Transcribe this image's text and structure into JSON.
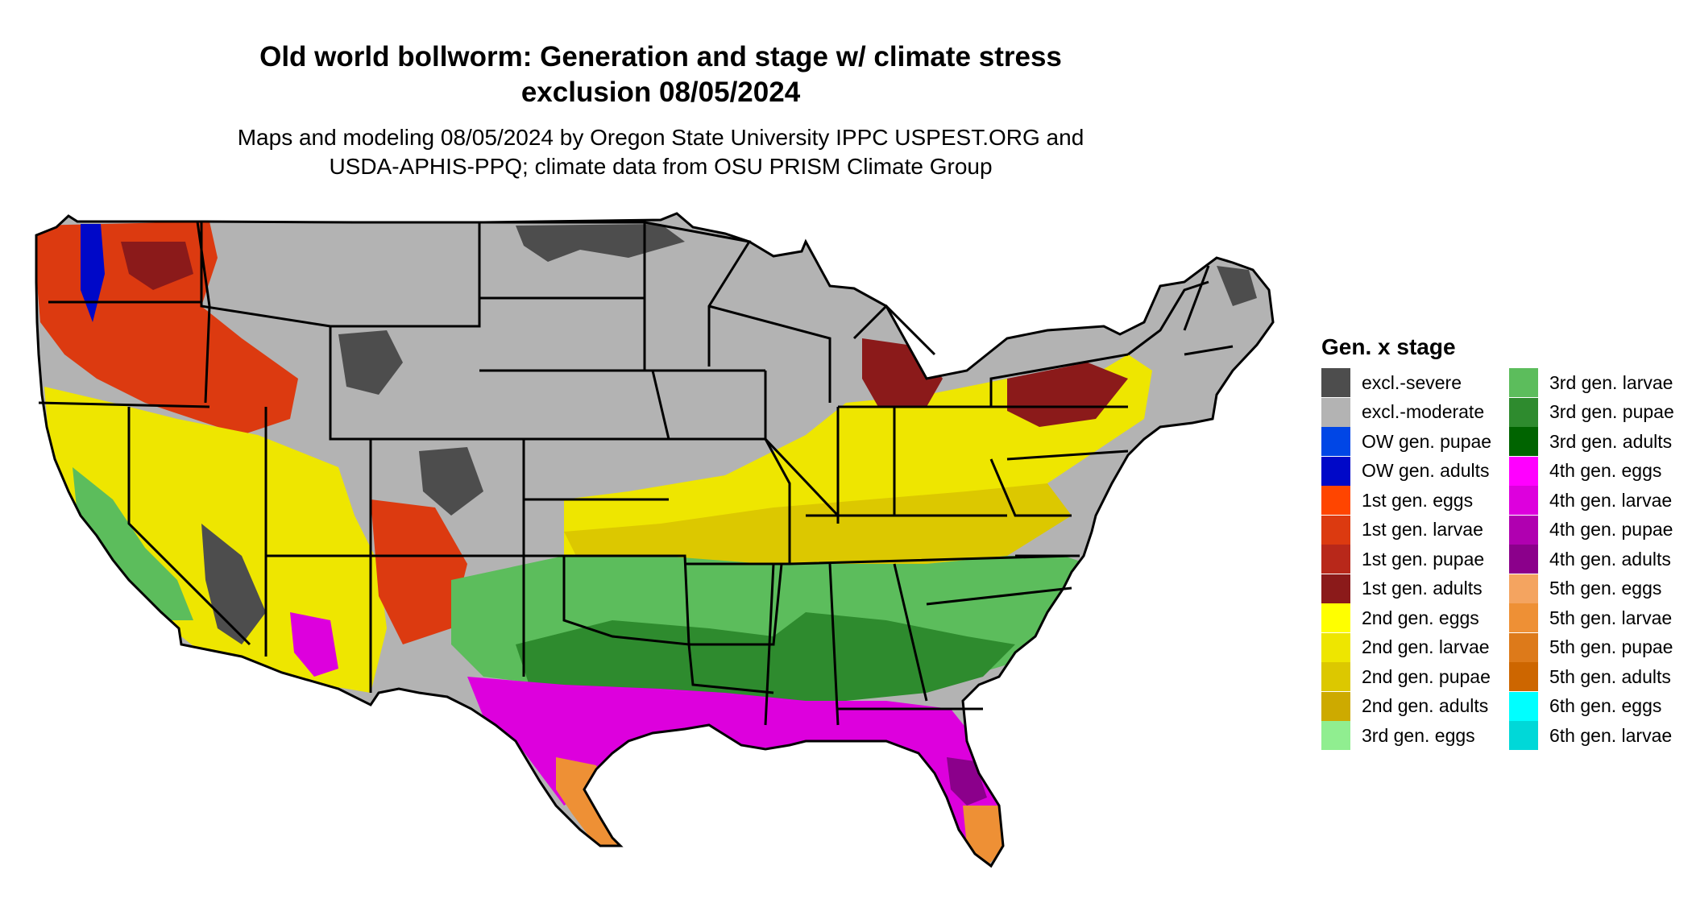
{
  "title_line1": "Old world bollworm: Generation and stage w/ climate stress",
  "title_line2": "exclusion 08/05/2024",
  "subtitle_line1": "Maps and modeling 08/05/2024 by Oregon State University IPPC USPEST.ORG and",
  "subtitle_line2": "USDA-APHIS-PPQ; climate data from OSU PRISM Climate Group",
  "legend": {
    "title": "Gen. x stage",
    "col1": [
      {
        "label": "excl.-severe",
        "color": "#4d4d4d"
      },
      {
        "label": "excl.-moderate",
        "color": "#b3b3b3"
      },
      {
        "label": "OW gen. pupae",
        "color": "#0046e6"
      },
      {
        "label": "OW gen. adults",
        "color": "#0008c8"
      },
      {
        "label": "1st gen. eggs",
        "color": "#ff4500"
      },
      {
        "label": "1st gen. larvae",
        "color": "#dc3a10"
      },
      {
        "label": "1st gen. pupae",
        "color": "#b8281a"
      },
      {
        "label": "1st gen. adults",
        "color": "#8b1a1a"
      },
      {
        "label": "2nd gen. eggs",
        "color": "#ffff00"
      },
      {
        "label": "2nd gen. larvae",
        "color": "#eee600"
      },
      {
        "label": "2nd gen. pupae",
        "color": "#dcc800"
      },
      {
        "label": "2nd gen. adults",
        "color": "#cdaa00"
      },
      {
        "label": "3rd gen. eggs",
        "color": "#90ee90"
      }
    ],
    "col2": [
      {
        "label": "3rd gen. larvae",
        "color": "#5cbd5c"
      },
      {
        "label": "3rd gen. pupae",
        "color": "#2e8b2e"
      },
      {
        "label": "3rd gen. adults",
        "color": "#006400"
      },
      {
        "label": "4th gen. eggs",
        "color": "#ff00ff"
      },
      {
        "label": "4th gen. larvae",
        "color": "#dd00dd"
      },
      {
        "label": "4th gen. pupae",
        "color": "#b000b0"
      },
      {
        "label": "4th gen. adults",
        "color": "#8b008b"
      },
      {
        "label": "5th gen. eggs",
        "color": "#f4a460"
      },
      {
        "label": "5th gen. larvae",
        "color": "#ee9035"
      },
      {
        "label": "5th gen. pupae",
        "color": "#dd7a1a"
      },
      {
        "label": "5th gen. adults",
        "color": "#cd6600"
      },
      {
        "label": "6th gen. eggs",
        "color": "#00ffff"
      },
      {
        "label": "6th gen. larvae",
        "color": "#00d8d8"
      }
    ]
  },
  "map": {
    "region": "Contiguous United States",
    "colors": {
      "excl_severe": "#4d4d4d",
      "excl_moderate": "#b3b3b3",
      "ow_pupae": "#0046e6",
      "ow_adults": "#0008c8",
      "g1_larvae": "#dc3a10",
      "g1_adults": "#8b1a1a",
      "g2_eggs": "#ffff00",
      "g2_larvae": "#eee600",
      "g2_pupae": "#dcc800",
      "g3_eggs": "#90ee90",
      "g3_larvae": "#5cbd5c",
      "g3_pupae": "#2e8b2e",
      "g4_larvae": "#dd00dd",
      "g4_adults": "#8b008b",
      "g5_larvae": "#ee9035",
      "border": "#000000"
    }
  }
}
